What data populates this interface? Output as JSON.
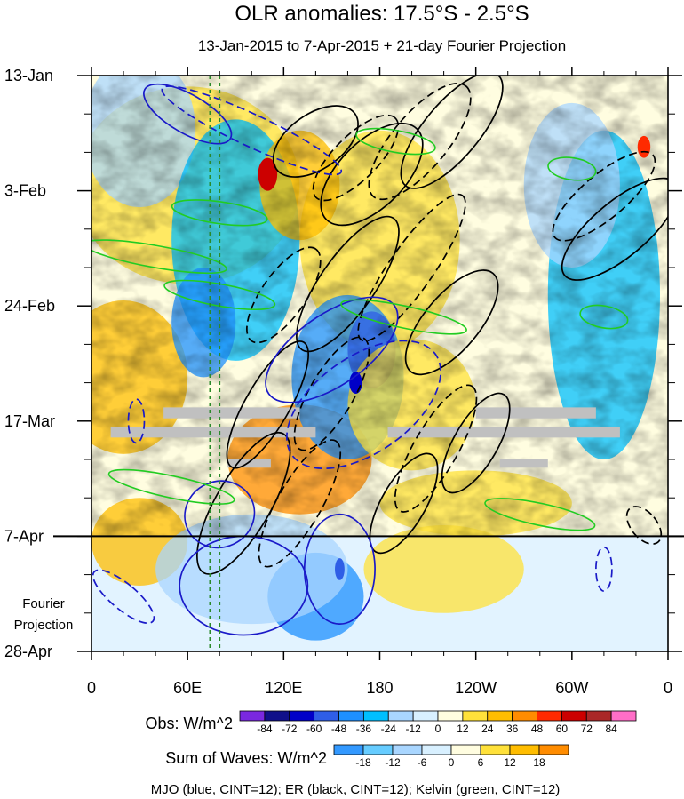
{
  "chart_data": {
    "type": "heatmap",
    "title": "OLR anomalies: 17.5°S - 2.5°S",
    "subtitle": "13-Jan-2015 to 7-Apr-2015 + 21-day Fourier Projection",
    "x_tick_labels": [
      "0",
      "60E",
      "120E",
      "180",
      "120W",
      "60W",
      "0"
    ],
    "x_tick_values_deg_east": [
      0,
      60,
      120,
      180,
      240,
      300,
      360
    ],
    "xlim": [
      0,
      360
    ],
    "y_tick_labels": [
      "13-Jan",
      "3-Feb",
      "24-Feb",
      "17-Mar",
      "7-Apr",
      "28-Apr"
    ],
    "y_tick_day_offsets": [
      0,
      21,
      42,
      63,
      84,
      105
    ],
    "ylim_days": [
      0,
      105
    ],
    "observed_end_day": 84,
    "projection_label_line1": "Fourier",
    "projection_label_line2": "Projection",
    "obs_colorbar": {
      "label": "Obs: W/m^2",
      "levels": [
        "-84",
        "-72",
        "-60",
        "-48",
        "-36",
        "-24",
        "-12",
        "0",
        "12",
        "24",
        "36",
        "48",
        "60",
        "72",
        "84"
      ],
      "colors": [
        "#7a28e0",
        "#10108a",
        "#0000c8",
        "#2f5ee6",
        "#1e90ff",
        "#00bfff",
        "#a9d6ff",
        "#d8f0ff",
        "#fffde0",
        "#ffe13a",
        "#ffbd00",
        "#ff8c00",
        "#ff2a00",
        "#cc0000",
        "#aa2828",
        "#ff6ec7"
      ]
    },
    "waves_colorbar": {
      "label": "Sum of Waves: W/m^2",
      "levels": [
        "-18",
        "-12",
        "-6",
        "0",
        "6",
        "12",
        "18"
      ],
      "colors": [
        "#3399ff",
        "#66ccff",
        "#a9d6ff",
        "#d8f0ff",
        "#fffde0",
        "#ffe13a",
        "#ffbd00",
        "#ff8c00"
      ]
    },
    "contours_note": "MJO (blue, CINT=12); ER (black, CINT=12); Kelvin (green, CINT=12)",
    "vertical_reference_lines_deg_east": [
      74,
      80
    ],
    "mjo_contours": [
      {
        "lon": 60,
        "day": 7,
        "rlon": 12,
        "rday": 9,
        "angle": -60,
        "dashed": false
      },
      {
        "lon": 100,
        "day": 10,
        "rlon": 10,
        "rday": 18,
        "angle": -65,
        "dashed": true
      },
      {
        "lon": 150,
        "day": 50,
        "rlon": 22,
        "rday": 14,
        "angle": 55,
        "dashed": false
      },
      {
        "lon": 170,
        "day": 60,
        "rlon": 30,
        "rday": 16,
        "angle": 55,
        "dashed": true
      },
      {
        "lon": 80,
        "day": 80,
        "rlon": 22,
        "rday": 6,
        "angle": -25,
        "dashed": false
      },
      {
        "lon": 95,
        "day": 93,
        "rlon": 40,
        "rday": 9,
        "angle": 0,
        "dashed": false
      },
      {
        "lon": 20,
        "day": 95,
        "rlon": 8,
        "rday": 7,
        "angle": -50,
        "dashed": true
      },
      {
        "lon": 155,
        "day": 90,
        "rlon": 22,
        "rday": 10,
        "angle": 0,
        "dashed": false
      },
      {
        "lon": 320,
        "day": 90,
        "rlon": 5,
        "rday": 4,
        "angle": 0,
        "dashed": true
      },
      {
        "lon": 28,
        "day": 63,
        "rlon": 5,
        "rday": 4,
        "angle": 0,
        "dashed": true
      }
    ],
    "er_contours": [
      {
        "lon": 140,
        "day": 12,
        "rlon": 30,
        "rday": 5,
        "angle": -35,
        "dashed": false
      },
      {
        "lon": 175,
        "day": 18,
        "rlon": 40,
        "rday": 6,
        "angle": -45,
        "dashed": false
      },
      {
        "lon": 165,
        "day": 15,
        "rlon": 35,
        "rday": 4,
        "angle": -45,
        "dashed": true
      },
      {
        "lon": 205,
        "day": 12,
        "rlon": 45,
        "rday": 5,
        "angle": -50,
        "dashed": true
      },
      {
        "lon": 225,
        "day": 10,
        "rlon": 45,
        "rday": 5,
        "angle": -50,
        "dashed": false
      },
      {
        "lon": 120,
        "day": 40,
        "rlon": 35,
        "rday": 4,
        "angle": -55,
        "dashed": true
      },
      {
        "lon": 160,
        "day": 38,
        "rlon": 50,
        "rday": 5,
        "angle": -55,
        "dashed": false
      },
      {
        "lon": 200,
        "day": 35,
        "rlon": 55,
        "rday": 4,
        "angle": -55,
        "dashed": true
      },
      {
        "lon": 225,
        "day": 45,
        "rlon": 40,
        "rday": 5,
        "angle": -50,
        "dashed": false
      },
      {
        "lon": 110,
        "day": 60,
        "rlon": 45,
        "rday": 4,
        "angle": -60,
        "dashed": false
      },
      {
        "lon": 150,
        "day": 58,
        "rlon": 40,
        "rday": 4,
        "angle": -60,
        "dashed": true
      },
      {
        "lon": 215,
        "day": 68,
        "rlon": 45,
        "rday": 4,
        "angle": -60,
        "dashed": true
      },
      {
        "lon": 240,
        "day": 67,
        "rlon": 35,
        "rday": 4,
        "angle": -60,
        "dashed": false
      },
      {
        "lon": 95,
        "day": 78,
        "rlon": 50,
        "rday": 5,
        "angle": -60,
        "dashed": false
      },
      {
        "lon": 130,
        "day": 78,
        "rlon": 45,
        "rday": 4,
        "angle": -60,
        "dashed": true
      },
      {
        "lon": 195,
        "day": 78,
        "rlon": 35,
        "rday": 4,
        "angle": -60,
        "dashed": false
      },
      {
        "lon": 320,
        "day": 22,
        "rlon": 40,
        "rday": 4,
        "angle": -40,
        "dashed": true
      },
      {
        "lon": 330,
        "day": 28,
        "rlon": 45,
        "rday": 5,
        "angle": -40,
        "dashed": false
      },
      {
        "lon": 345,
        "day": 82,
        "rlon": 8,
        "rday": 4,
        "angle": -40,
        "dashed": true
      }
    ],
    "kelvin_contours": [
      {
        "lon": 80,
        "day": 25,
        "rlon": 30,
        "rday": 2,
        "angle": 8,
        "dashed": false
      },
      {
        "lon": 40,
        "day": 33,
        "rlon": 45,
        "rday": 2,
        "angle": 10,
        "dashed": false
      },
      {
        "lon": 80,
        "day": 40,
        "rlon": 35,
        "rday": 2,
        "angle": 10,
        "dashed": false
      },
      {
        "lon": 195,
        "day": 44,
        "rlon": 40,
        "rday": 2,
        "angle": 12,
        "dashed": false
      },
      {
        "lon": 190,
        "day": 12,
        "rlon": 25,
        "rday": 2,
        "angle": 10,
        "dashed": false
      },
      {
        "lon": 50,
        "day": 75,
        "rlon": 40,
        "rday": 2,
        "angle": 12,
        "dashed": false
      },
      {
        "lon": 280,
        "day": 80,
        "rlon": 35,
        "rday": 2,
        "angle": 12,
        "dashed": false
      },
      {
        "lon": 320,
        "day": 44,
        "rlon": 15,
        "rday": 2,
        "angle": 10,
        "dashed": false
      },
      {
        "lon": 300,
        "day": 17,
        "rlon": 15,
        "rday": 2,
        "angle": 8,
        "dashed": false
      }
    ],
    "missing_data_bars": [
      {
        "lon0": 45,
        "lon1": 130,
        "day0": 60.5,
        "day1": 62.5
      },
      {
        "lon0": 12,
        "lon1": 140,
        "day0": 64,
        "day1": 66
      },
      {
        "lon0": 185,
        "lon1": 330,
        "day0": 64,
        "day1": 66
      },
      {
        "lon0": 240,
        "lon1": 315,
        "day0": 60.5,
        "day1": 62.5
      },
      {
        "lon0": 85,
        "lon1": 112,
        "day0": 70,
        "day1": 71.5
      },
      {
        "lon0": 255,
        "lon1": 285,
        "day0": 70,
        "day1": 71.5
      }
    ]
  }
}
